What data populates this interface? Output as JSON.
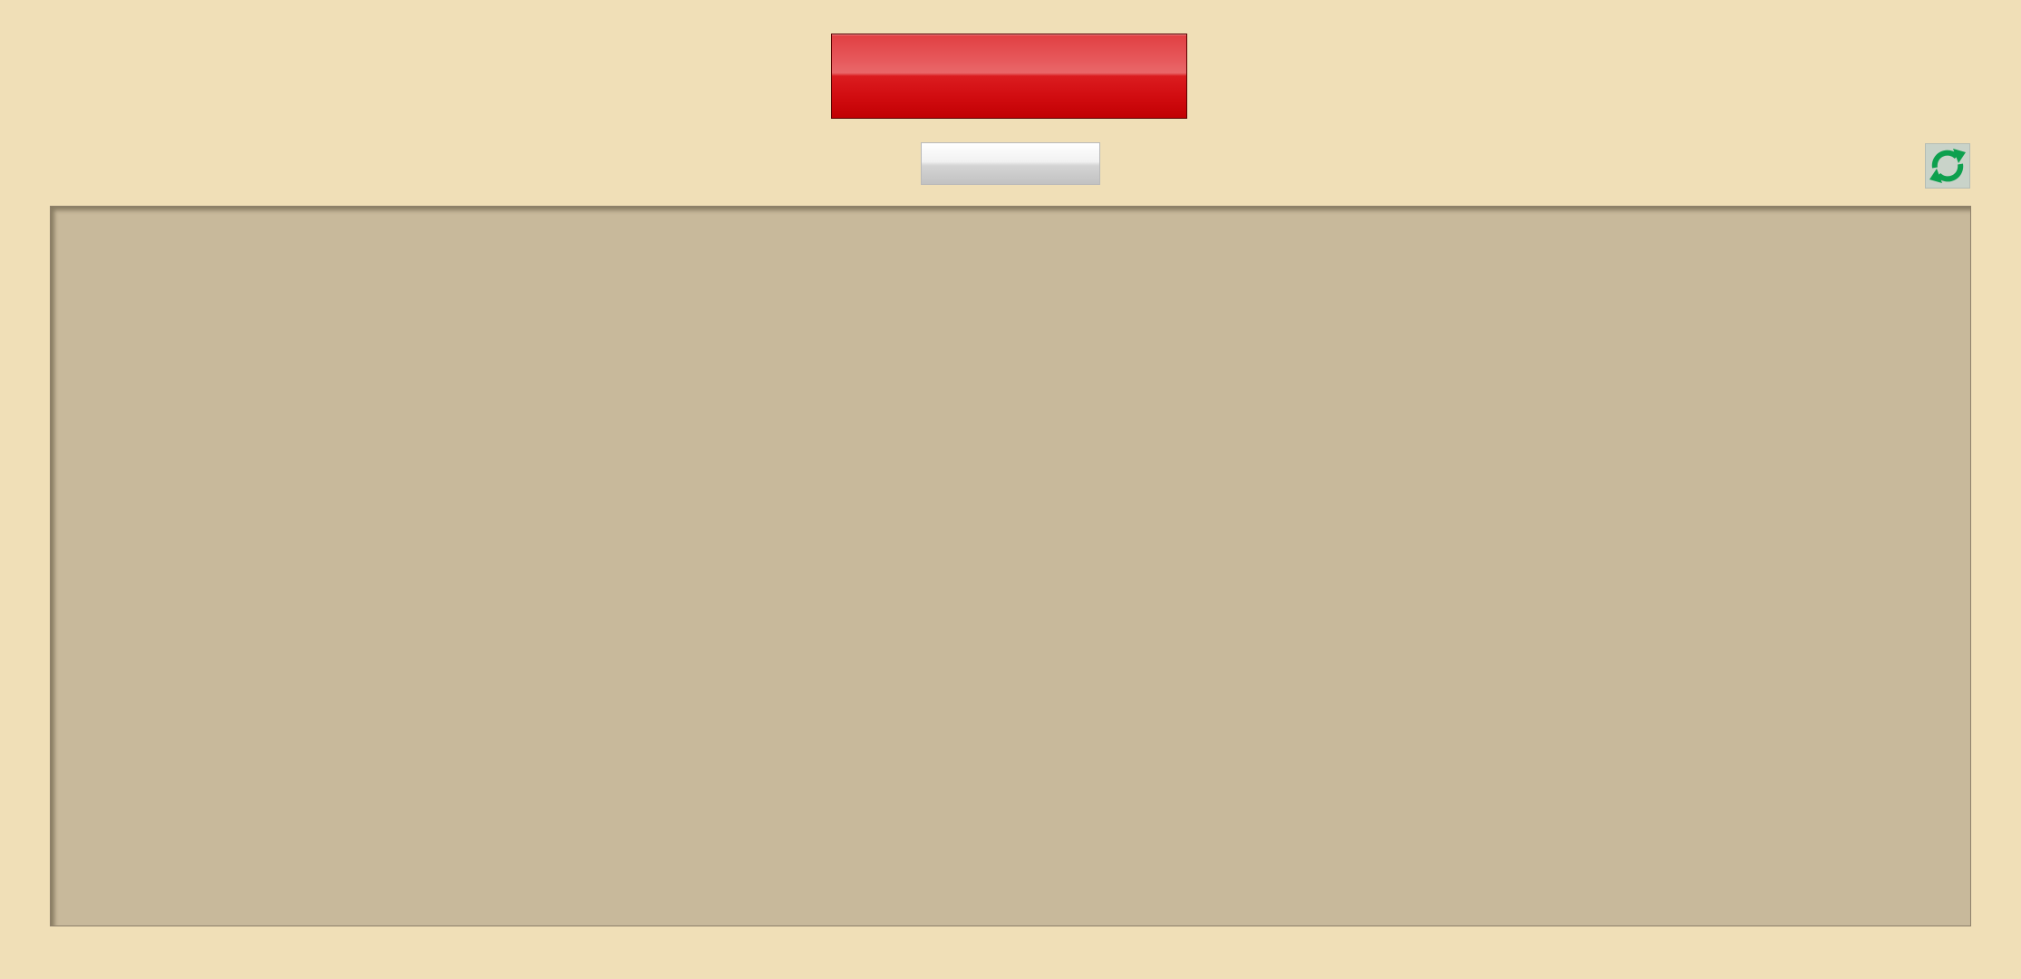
{
  "header": {
    "primary_button_label": "",
    "secondary_button_label": ""
  },
  "toolbar": {
    "refresh_icon": "refresh-icon"
  },
  "colors": {
    "background": "#f0dfb7",
    "panel": "#c8b99b",
    "primary_button": "#d10c10",
    "refresh_icon": "#0da04e"
  },
  "main": {
    "content": ""
  }
}
